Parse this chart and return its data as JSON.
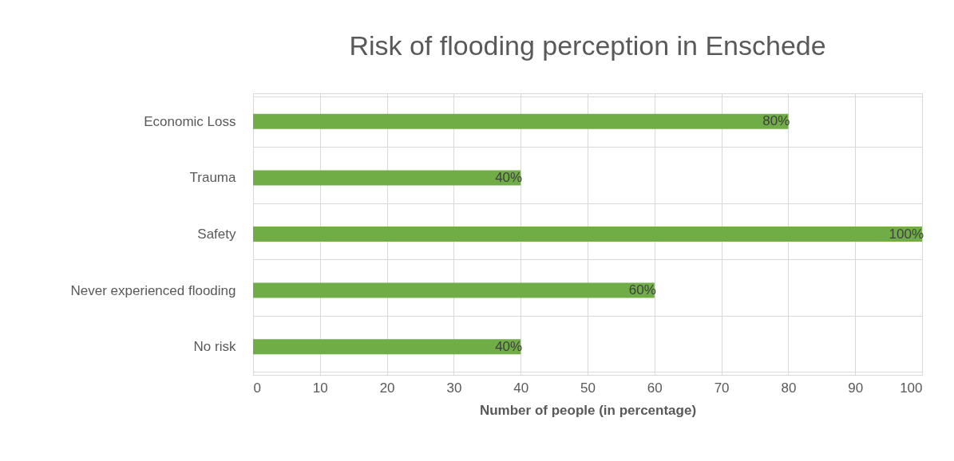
{
  "chart_data": {
    "type": "bar",
    "orientation": "horizontal",
    "title": "Risk of flooding perception in Enschede",
    "xlabel": "Number of people (in percentage)",
    "categories": [
      "Economic Loss",
      "Trauma",
      "Safety",
      "Never experienced flooding",
      "No risk"
    ],
    "values": [
      80,
      40,
      100,
      60,
      40
    ],
    "color": "#70ad47",
    "value_labels": [
      "80%",
      "40%",
      "100%",
      "60%",
      "40%"
    ],
    "xlim": [
      0,
      100
    ],
    "xticks": [
      0,
      10,
      20,
      30,
      40,
      50,
      60,
      70,
      80,
      90,
      100
    ],
    "grid": true
  }
}
